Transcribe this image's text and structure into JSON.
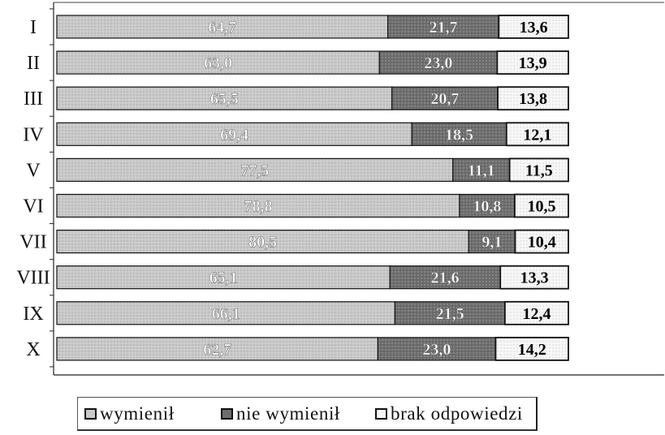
{
  "chart_data": {
    "type": "bar",
    "orientation": "horizontal",
    "stacked": true,
    "categories": [
      "I",
      "II",
      "III",
      "IV",
      "V",
      "VI",
      "VII",
      "VIII",
      "IX",
      "X"
    ],
    "series": [
      {
        "name": "wymienił",
        "values": [
          64.7,
          63.0,
          65.5,
          69.4,
          77.5,
          78.8,
          80.5,
          65.1,
          66.1,
          62.7
        ],
        "color": "#c8c8c8",
        "label_color": "#ffffff"
      },
      {
        "name": "nie wymienił",
        "values": [
          21.7,
          23.0,
          20.7,
          18.5,
          11.1,
          10.8,
          9.1,
          21.6,
          21.5,
          23.0
        ],
        "color": "#6e6e6e",
        "label_color": "#ffffff"
      },
      {
        "name": "brak odpowiedzi",
        "values": [
          13.6,
          13.9,
          13.8,
          12.1,
          11.5,
          10.5,
          10.4,
          13.3,
          12.4,
          14.2
        ],
        "color": "#f6f6f6",
        "label_color": "#000000"
      }
    ],
    "xlim": [
      0,
      100
    ],
    "grid": false,
    "legend": "bottom"
  }
}
